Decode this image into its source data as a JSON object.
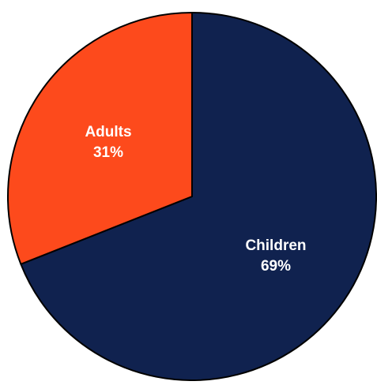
{
  "chart_data": {
    "type": "pie",
    "start_angle_deg": 0,
    "direction": "clockwise",
    "slices": [
      {
        "label": "Children",
        "value": 69,
        "value_text": "69%",
        "color": "#10224f"
      },
      {
        "label": "Adults",
        "value": 31,
        "value_text": "31%",
        "color": "#fd4a1c"
      }
    ],
    "border_color": "#000000"
  }
}
